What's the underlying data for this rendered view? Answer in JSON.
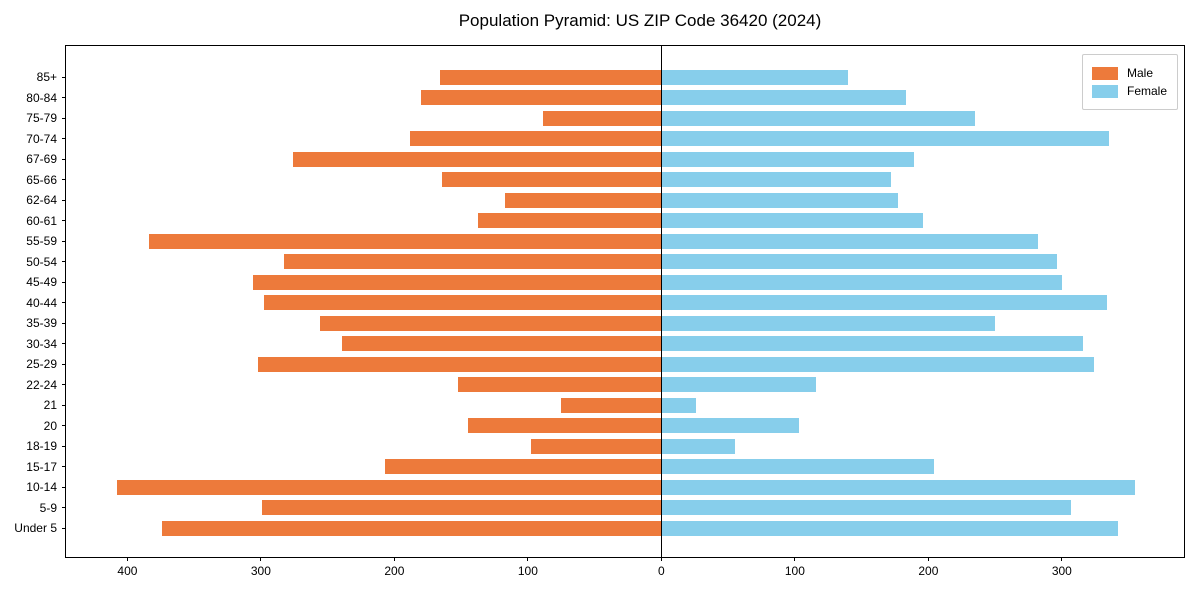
{
  "title": "Population Pyramid: US ZIP Code 36420 (2024)",
  "colors": {
    "male": "#ED7A3B",
    "female": "#87CEEB",
    "spine": "#000000",
    "legend_border": "#cccccc"
  },
  "legend": {
    "position": "upper right",
    "items": [
      {
        "label": "Male",
        "color": "#ED7A3B"
      },
      {
        "label": "Female",
        "color": "#87CEEB"
      }
    ]
  },
  "chart_data": {
    "type": "bar",
    "subtype": "population-pyramid-diverging-horizontal",
    "title": "Population Pyramid: US ZIP Code 36420 (2024)",
    "xlabel": "",
    "ylabel": "",
    "grid": false,
    "legend_position": "upper right",
    "categories_top_to_bottom": [
      "85+",
      "80-84",
      "75-79",
      "70-74",
      "67-69",
      "65-66",
      "62-64",
      "60-61",
      "55-59",
      "50-54",
      "45-49",
      "40-44",
      "35-39",
      "30-34",
      "25-29",
      "22-24",
      "21",
      "20",
      "18-19",
      "15-17",
      "10-14",
      "5-9",
      "Under 5"
    ],
    "series": [
      {
        "name": "Male",
        "side": "left",
        "color": "#ED7A3B",
        "values": [
          166,
          180,
          89,
          188,
          276,
          164,
          117,
          137,
          384,
          283,
          306,
          298,
          256,
          239,
          302,
          152,
          75,
          145,
          98,
          207,
          408,
          299,
          374
        ]
      },
      {
        "name": "Female",
        "side": "right",
        "color": "#87CEEB",
        "values": [
          140,
          183,
          235,
          335,
          189,
          172,
          177,
          196,
          282,
          296,
          300,
          334,
          250,
          316,
          324,
          116,
          26,
          103,
          55,
          204,
          355,
          307,
          342
        ]
      }
    ],
    "x_axis": {
      "tick_values": [
        -400,
        -300,
        -200,
        -100,
        0,
        100,
        200,
        300
      ],
      "tick_labels": [
        "400",
        "300",
        "200",
        "100",
        "0",
        "100",
        "200",
        "300"
      ],
      "xlim": [
        -446,
        393
      ],
      "note": "left side = Male counts (absolute value labels), right side = Female counts"
    }
  }
}
